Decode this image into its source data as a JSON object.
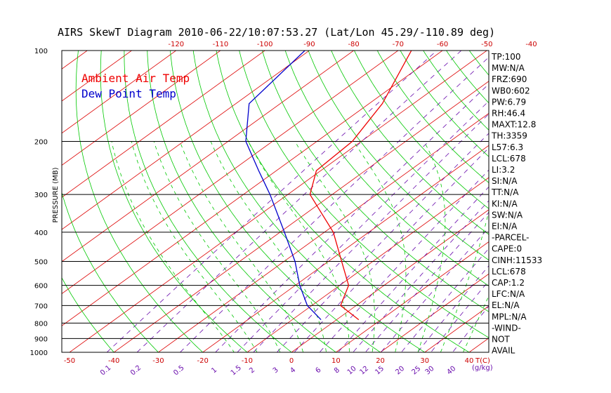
{
  "title": "AIRS SkewT Diagram 2010-06-22/10:07:53.27 (Lat/Lon 45.29/-110.89 deg)",
  "legend": {
    "air": "Ambient Air Temp",
    "dew": "Dew Point Temp"
  },
  "y_axis_label": "PRESSURE (MB)",
  "x_axis_label": "T(C)",
  "mixing_ratio_label": "(g/kg)",
  "colors": {
    "air_temp": "#ee0000",
    "dew_point": "#0000cc",
    "isotherm": "#dd0000",
    "dry_adiabat": "#00c800",
    "moist_adiabat": "#00c800",
    "mixing_ratio": "#6a0dad",
    "axis": "#000000"
  },
  "chart_data": {
    "type": "line",
    "title": "AIRS SkewT Diagram 2010-06-22/10:07:53.27 (Lat/Lon 45.29/-110.89 deg)",
    "xlabel": "T(C)",
    "ylabel": "PRESSURE (MB)",
    "y_scale": "log",
    "ylim": [
      1000,
      100
    ],
    "xlim_bottom": [
      -50,
      40
    ],
    "pressure_ticks": [
      100,
      200,
      300,
      400,
      500,
      600,
      700,
      800,
      900,
      1000
    ],
    "bottom_temp_ticks": [
      -50,
      -40,
      -30,
      -20,
      -10,
      0,
      10,
      20,
      30,
      40
    ],
    "top_temp_ticks": [
      -120,
      -110,
      -100,
      -90,
      -80,
      -70,
      -60,
      -50,
      -40
    ],
    "mixing_ratio_ticks": [
      "0.1",
      "0.2",
      "0.5",
      "1",
      "1.5",
      "2",
      "3",
      "4",
      "6",
      "8",
      "10",
      "12",
      "15",
      "20",
      "25",
      "30",
      "40"
    ],
    "series": [
      {
        "name": "Ambient Air Temp",
        "points": [
          {
            "p": 780,
            "t": 5.0
          },
          {
            "p": 700,
            "t": -3.5
          },
          {
            "p": 600,
            "t": -8.0
          },
          {
            "p": 500,
            "t": -17.0
          },
          {
            "p": 400,
            "t": -28.0
          },
          {
            "p": 300,
            "t": -45.0
          },
          {
            "p": 250,
            "t": -51.0
          },
          {
            "p": 200,
            "t": -52.0
          },
          {
            "p": 150,
            "t": -57.0
          },
          {
            "p": 100,
            "t": -67.0
          }
        ]
      },
      {
        "name": "Dew Point Temp",
        "points": [
          {
            "p": 780,
            "t": -3.5
          },
          {
            "p": 700,
            "t": -11.0
          },
          {
            "p": 600,
            "t": -19.0
          },
          {
            "p": 500,
            "t": -27.5
          },
          {
            "p": 400,
            "t": -39.0
          },
          {
            "p": 300,
            "t": -54.0
          },
          {
            "p": 250,
            "t": -64.0
          },
          {
            "p": 200,
            "t": -76.0
          },
          {
            "p": 150,
            "t": -87.0
          },
          {
            "p": 100,
            "t": -91.0
          }
        ]
      }
    ]
  },
  "indices": [
    "TP:100",
    "MW:N/A",
    "FRZ:690",
    "WB0:602",
    "PW:6.79",
    "RH:46.4",
    "MAXT:12.8",
    "TH:3359",
    "L57:6.3",
    "LCL:678",
    "LI:3.2",
    "SI:N/A",
    "TT:N/A",
    "KI:N/A",
    "SW:N/A",
    "EI:N/A",
    "-PARCEL-",
    "CAPE:0",
    "CINH:11533",
    "LCL:678",
    "CAP:1.2",
    "LFC:N/A",
    "EL:N/A",
    "MPL:N/A",
    "-WIND-",
    "NOT",
    "AVAIL"
  ]
}
